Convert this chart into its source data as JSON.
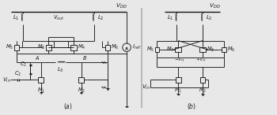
{
  "fig_width": 3.5,
  "fig_height": 1.46,
  "dpi": 100,
  "background_color": "#e8e8e8",
  "line_color": "#1a1a1a",
  "label_fontsize": 5.0,
  "lw": 0.65
}
